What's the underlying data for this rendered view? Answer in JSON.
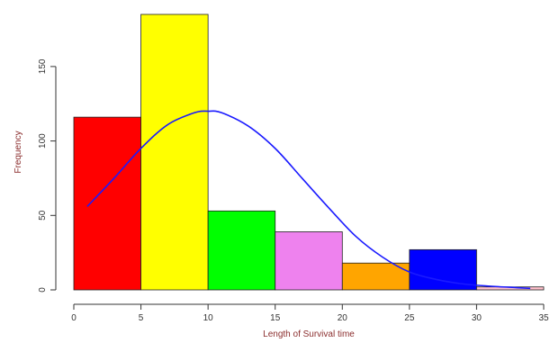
{
  "chart_data": {
    "type": "bar",
    "title": "",
    "xlabel": "Length of Survival time",
    "ylabel": "Frequency",
    "xlim": [
      0,
      35
    ],
    "ylim": [
      0,
      185
    ],
    "x_ticks": [
      0,
      5,
      10,
      15,
      20,
      25,
      30,
      35
    ],
    "y_ticks": [
      0,
      50,
      100,
      150
    ],
    "bins": [
      {
        "from": 0,
        "to": 5,
        "value": 116,
        "color": "#ff0000"
      },
      {
        "from": 5,
        "to": 10,
        "value": 185,
        "color": "#ffff00"
      },
      {
        "from": 10,
        "to": 15,
        "value": 53,
        "color": "#00ff00"
      },
      {
        "from": 15,
        "to": 20,
        "value": 39,
        "color": "#ee82ee"
      },
      {
        "from": 20,
        "to": 25,
        "value": 18,
        "color": "#ffa500"
      },
      {
        "from": 25,
        "to": 30,
        "value": 27,
        "color": "#0000ff"
      },
      {
        "from": 30,
        "to": 35,
        "value": 2,
        "color": "#ffc0cb"
      }
    ],
    "density_curve": {
      "color": "#1a1aff",
      "x": [
        1,
        3,
        5,
        7,
        9,
        10,
        11,
        13,
        15,
        17,
        19,
        21,
        23,
        25,
        27,
        29,
        31,
        33,
        34
      ],
      "y": [
        56,
        75,
        95,
        111,
        119,
        120,
        119,
        110,
        95,
        75,
        55,
        36,
        22,
        12,
        7,
        4,
        2.5,
        1.5,
        1
      ]
    },
    "grid": false,
    "legend": "none"
  }
}
